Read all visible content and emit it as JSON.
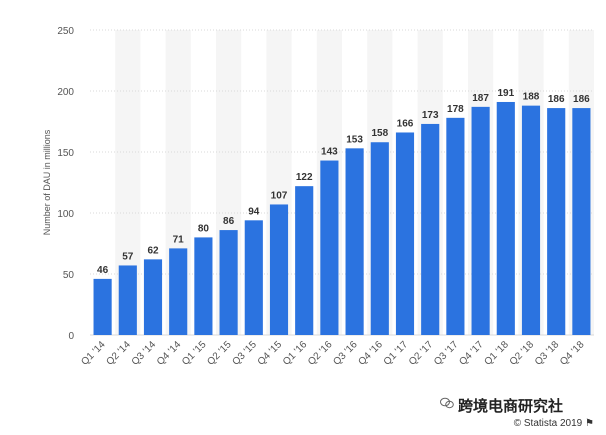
{
  "chart_data": {
    "type": "bar",
    "categories": [
      "Q1 '14",
      "Q2 '14",
      "Q3 '14",
      "Q4 '14",
      "Q1 '15",
      "Q2 '15",
      "Q3 '15",
      "Q4 '15",
      "Q1 '16",
      "Q2 '16",
      "Q3 '16",
      "Q4 '16",
      "Q1 '17",
      "Q2 '17",
      "Q3 '17",
      "Q4 '17",
      "Q1 '18",
      "Q2 '18",
      "Q3 '18",
      "Q4 '18"
    ],
    "values": [
      46,
      57,
      62,
      71,
      80,
      86,
      94,
      107,
      122,
      143,
      153,
      158,
      166,
      173,
      178,
      187,
      191,
      188,
      186,
      186
    ],
    "ylabel": "Number of DAU in millions",
    "ylim": [
      0,
      250
    ],
    "yticks": [
      0,
      50,
      100,
      150,
      200,
      250
    ],
    "grid": true,
    "colors": {
      "bar": "#2b73e0",
      "band": "#f5f5f5",
      "grid": "#d9d9d9"
    }
  },
  "watermark": {
    "text": "跨境电商研究社"
  },
  "credit": {
    "text": "© Statista 2019"
  }
}
